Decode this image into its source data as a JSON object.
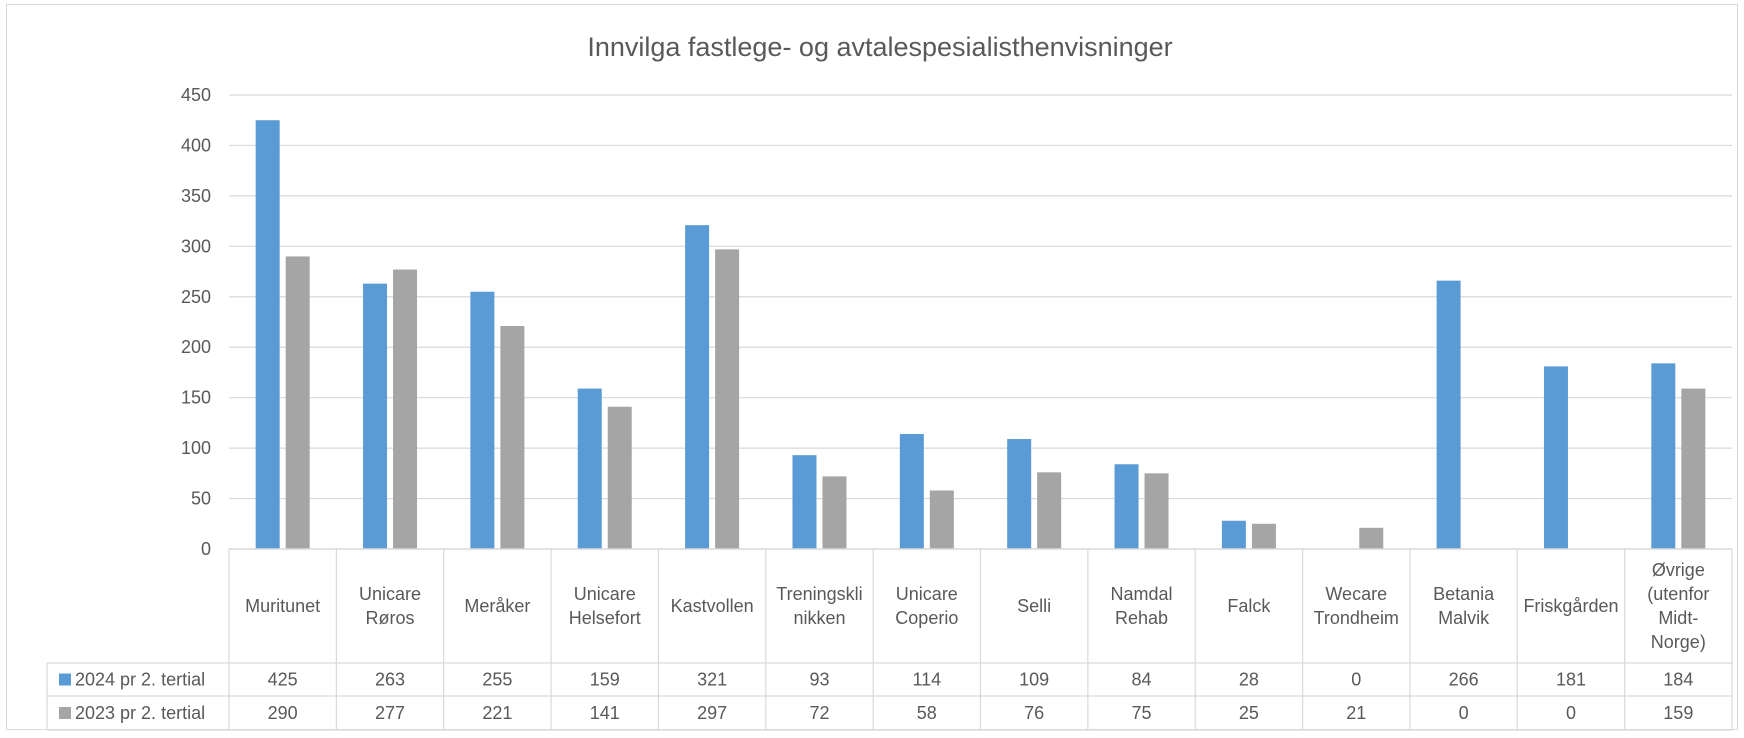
{
  "chart_data": {
    "type": "bar",
    "title": "Innvilga fastlege- og avtalespesialisthenvisninger",
    "ylim": [
      0,
      450
    ],
    "yticks": [
      0,
      50,
      100,
      150,
      200,
      250,
      300,
      350,
      400,
      450
    ],
    "grid": true,
    "legend": "data-table",
    "categories": [
      [
        "Muritunet"
      ],
      [
        "Unicare",
        "Røros"
      ],
      [
        "Meråker"
      ],
      [
        "Unicare",
        "Helsefort"
      ],
      [
        "Kastvollen"
      ],
      [
        "Treningskli",
        "nikken"
      ],
      [
        "Unicare",
        "Coperio"
      ],
      [
        "Selli"
      ],
      [
        "Namdal",
        "Rehab"
      ],
      [
        "Falck"
      ],
      [
        "Wecare",
        "Trondheim"
      ],
      [
        "Betania",
        "Malvik"
      ],
      [
        "Friskgården"
      ],
      [
        "Øvrige",
        "(utenfor",
        "Midt-",
        "Norge)"
      ]
    ],
    "series": [
      {
        "name": "2024 pr 2. tertial",
        "color": "#5b9bd5",
        "values": [
          425,
          263,
          255,
          159,
          321,
          93,
          114,
          109,
          84,
          28,
          0,
          266,
          181,
          184
        ]
      },
      {
        "name": "2023 pr 2. tertial",
        "color": "#a5a5a5",
        "values": [
          290,
          277,
          221,
          141,
          297,
          72,
          58,
          76,
          75,
          25,
          21,
          0,
          0,
          159
        ]
      }
    ]
  }
}
